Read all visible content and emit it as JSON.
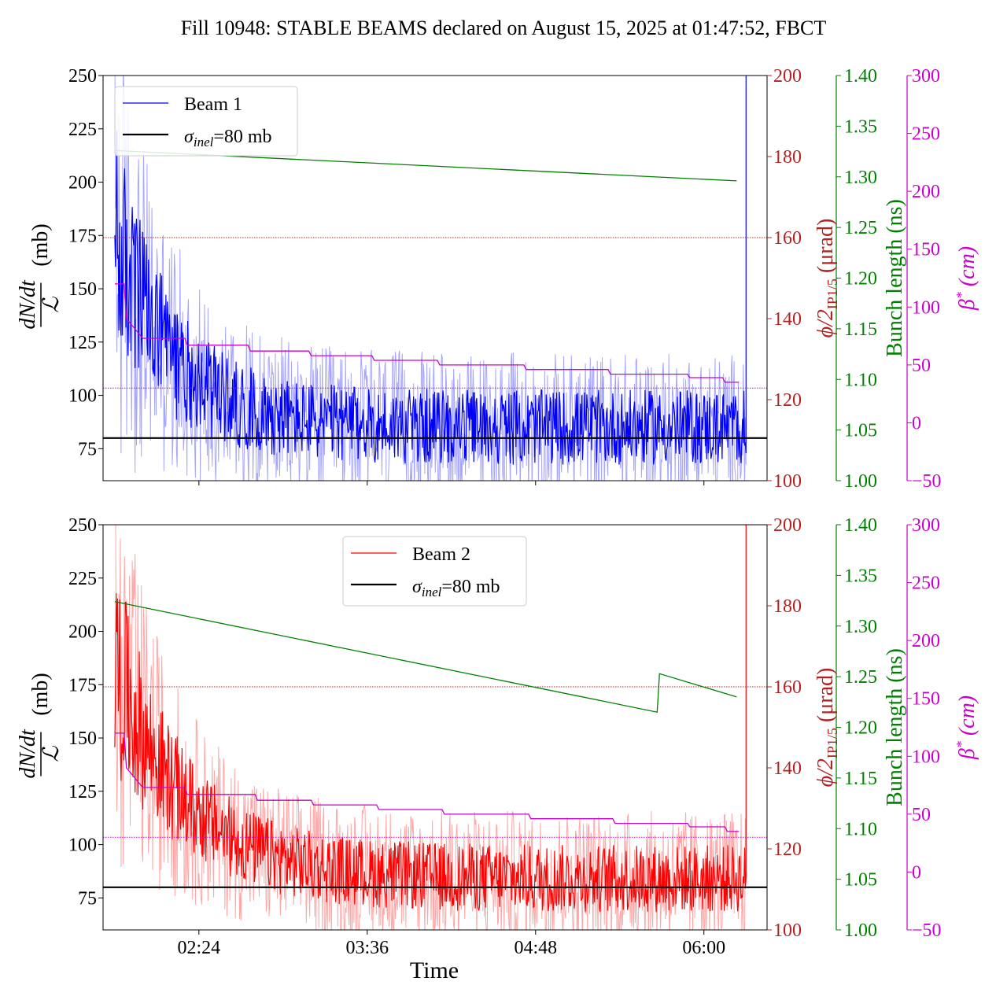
{
  "title": "Fill 10948: STABLE BEAMS declared on August 15, 2025 at 01:47:52, FBCT",
  "xlabel": "Time",
  "x_ticks": [
    "02:24",
    "03:36",
    "04:48",
    "06:00"
  ],
  "colors": {
    "beam1": "#0000ff",
    "beam2": "#ff0000",
    "crossing_axis": "#b22222",
    "bunch_axis": "#008000",
    "beta_axis": "#cc00cc",
    "reference": "#000000"
  },
  "axes_labels": {
    "left": "(mb)",
    "crossing": "(μrad)",
    "bunch": "Bunch length (ns)",
    "beta": "(cm)"
  },
  "chart_data": [
    {
      "type": "line",
      "panel": "top",
      "legend": [
        "Beam 1",
        "σ_inel=80 mb"
      ],
      "legend_position": "upper-left",
      "x_range": [
        "01:48",
        "06:18"
      ],
      "left_axis": {
        "ylim": [
          60,
          250
        ],
        "ticks": [
          75,
          100,
          125,
          150,
          175,
          200,
          225,
          250
        ]
      },
      "crossing_axis": {
        "ylim": [
          100,
          200
        ],
        "ticks": [
          100,
          120,
          140,
          160,
          180,
          200
        ]
      },
      "bunch_axis": {
        "ylim": [
          1.0,
          1.4
        ],
        "ticks": [
          "1.00",
          "1.05",
          "1.10",
          "1.15",
          "1.20",
          "1.25",
          "1.30",
          "1.35",
          "1.40"
        ]
      },
      "beta_axis": {
        "ylim": [
          -50,
          300
        ],
        "ticks": [
          -50,
          0,
          50,
          100,
          150,
          200,
          250,
          300
        ]
      },
      "series": [
        {
          "name": "Beam 1",
          "axis": "left",
          "start": "01:48",
          "end": "06:18",
          "start_value": 175,
          "settle_value": 85,
          "decay_minutes": 25,
          "spread": 22,
          "final_spike": 250
        },
        {
          "name": "σ_inel=80 mb",
          "axis": "left",
          "x": [
            "01:44",
            "06:17"
          ],
          "y": [
            80,
            80
          ]
        },
        {
          "name": "crossing angle reference",
          "axis": "crossing",
          "y_const": 160
        },
        {
          "name": "bunch length",
          "axis": "bunch",
          "x": [
            "01:48",
            "06:14"
          ],
          "y": [
            1.326,
            1.296
          ]
        },
        {
          "name": "β*",
          "axis": "beta",
          "x": [
            "01:48",
            "01:52",
            "01:53",
            "02:00",
            "02:01",
            "02:18",
            "02:19",
            "02:45",
            "02:46",
            "03:11",
            "03:12",
            "03:38",
            "03:39",
            "04:06",
            "04:07",
            "04:43",
            "04:44",
            "05:19",
            "05:20",
            "05:53",
            "05:54",
            "06:08",
            "06:09",
            "06:15"
          ],
          "y": [
            120,
            120,
            90,
            73,
            73,
            73,
            67,
            67,
            62,
            62,
            58,
            58,
            54,
            54,
            50,
            50,
            46,
            46,
            42,
            42,
            39,
            39,
            35,
            35
          ]
        },
        {
          "name": "β* reference",
          "axis": "beta",
          "y_const": 30
        }
      ]
    },
    {
      "type": "line",
      "panel": "bottom",
      "legend": [
        "Beam 2",
        "σ_inel=80 mb"
      ],
      "legend_position": "upper-center",
      "x_range": [
        "01:48",
        "06:18"
      ],
      "left_axis": {
        "ylim": [
          60,
          250
        ],
        "ticks": [
          75,
          100,
          125,
          150,
          175,
          200,
          225,
          250
        ]
      },
      "crossing_axis": {
        "ylim": [
          100,
          200
        ],
        "ticks": [
          100,
          120,
          140,
          160,
          180,
          200
        ]
      },
      "bunch_axis": {
        "ylim": [
          1.0,
          1.4
        ],
        "ticks": [
          "1.00",
          "1.05",
          "1.10",
          "1.15",
          "1.20",
          "1.25",
          "1.30",
          "1.35",
          "1.40"
        ]
      },
      "beta_axis": {
        "ylim": [
          -50,
          300
        ],
        "ticks": [
          -50,
          0,
          50,
          100,
          150,
          200,
          250,
          300
        ]
      },
      "series": [
        {
          "name": "Beam 2",
          "axis": "left",
          "start": "01:48",
          "end": "06:18",
          "start_value": 185,
          "settle_value": 84,
          "decay_minutes": 30,
          "spread": 20,
          "final_spike": 250
        },
        {
          "name": "σ_inel=80 mb",
          "axis": "left",
          "x": [
            "01:44",
            "06:17"
          ],
          "y": [
            80,
            80
          ]
        },
        {
          "name": "crossing angle reference",
          "axis": "crossing",
          "y_const": 160
        },
        {
          "name": "bunch length",
          "axis": "bunch",
          "x": [
            "01:48",
            "05:40",
            "05:41",
            "06:14"
          ],
          "y": [
            1.324,
            1.215,
            1.253,
            1.23
          ]
        },
        {
          "name": "β*",
          "axis": "beta",
          "x": [
            "01:48",
            "01:52",
            "01:53",
            "02:00",
            "02:01",
            "02:18",
            "02:19",
            "02:48",
            "02:49",
            "03:12",
            "03:13",
            "03:40",
            "03:41",
            "04:08",
            "04:09",
            "04:45",
            "04:46",
            "05:21",
            "05:22",
            "05:53",
            "05:54",
            "06:09",
            "06:10",
            "06:15"
          ],
          "y": [
            120,
            120,
            90,
            73,
            73,
            73,
            67,
            67,
            62,
            62,
            58,
            58,
            54,
            54,
            50,
            50,
            46,
            46,
            42,
            42,
            39,
            39,
            35,
            35
          ]
        },
        {
          "name": "β* reference",
          "axis": "beta",
          "y_const": 30
        }
      ]
    }
  ]
}
